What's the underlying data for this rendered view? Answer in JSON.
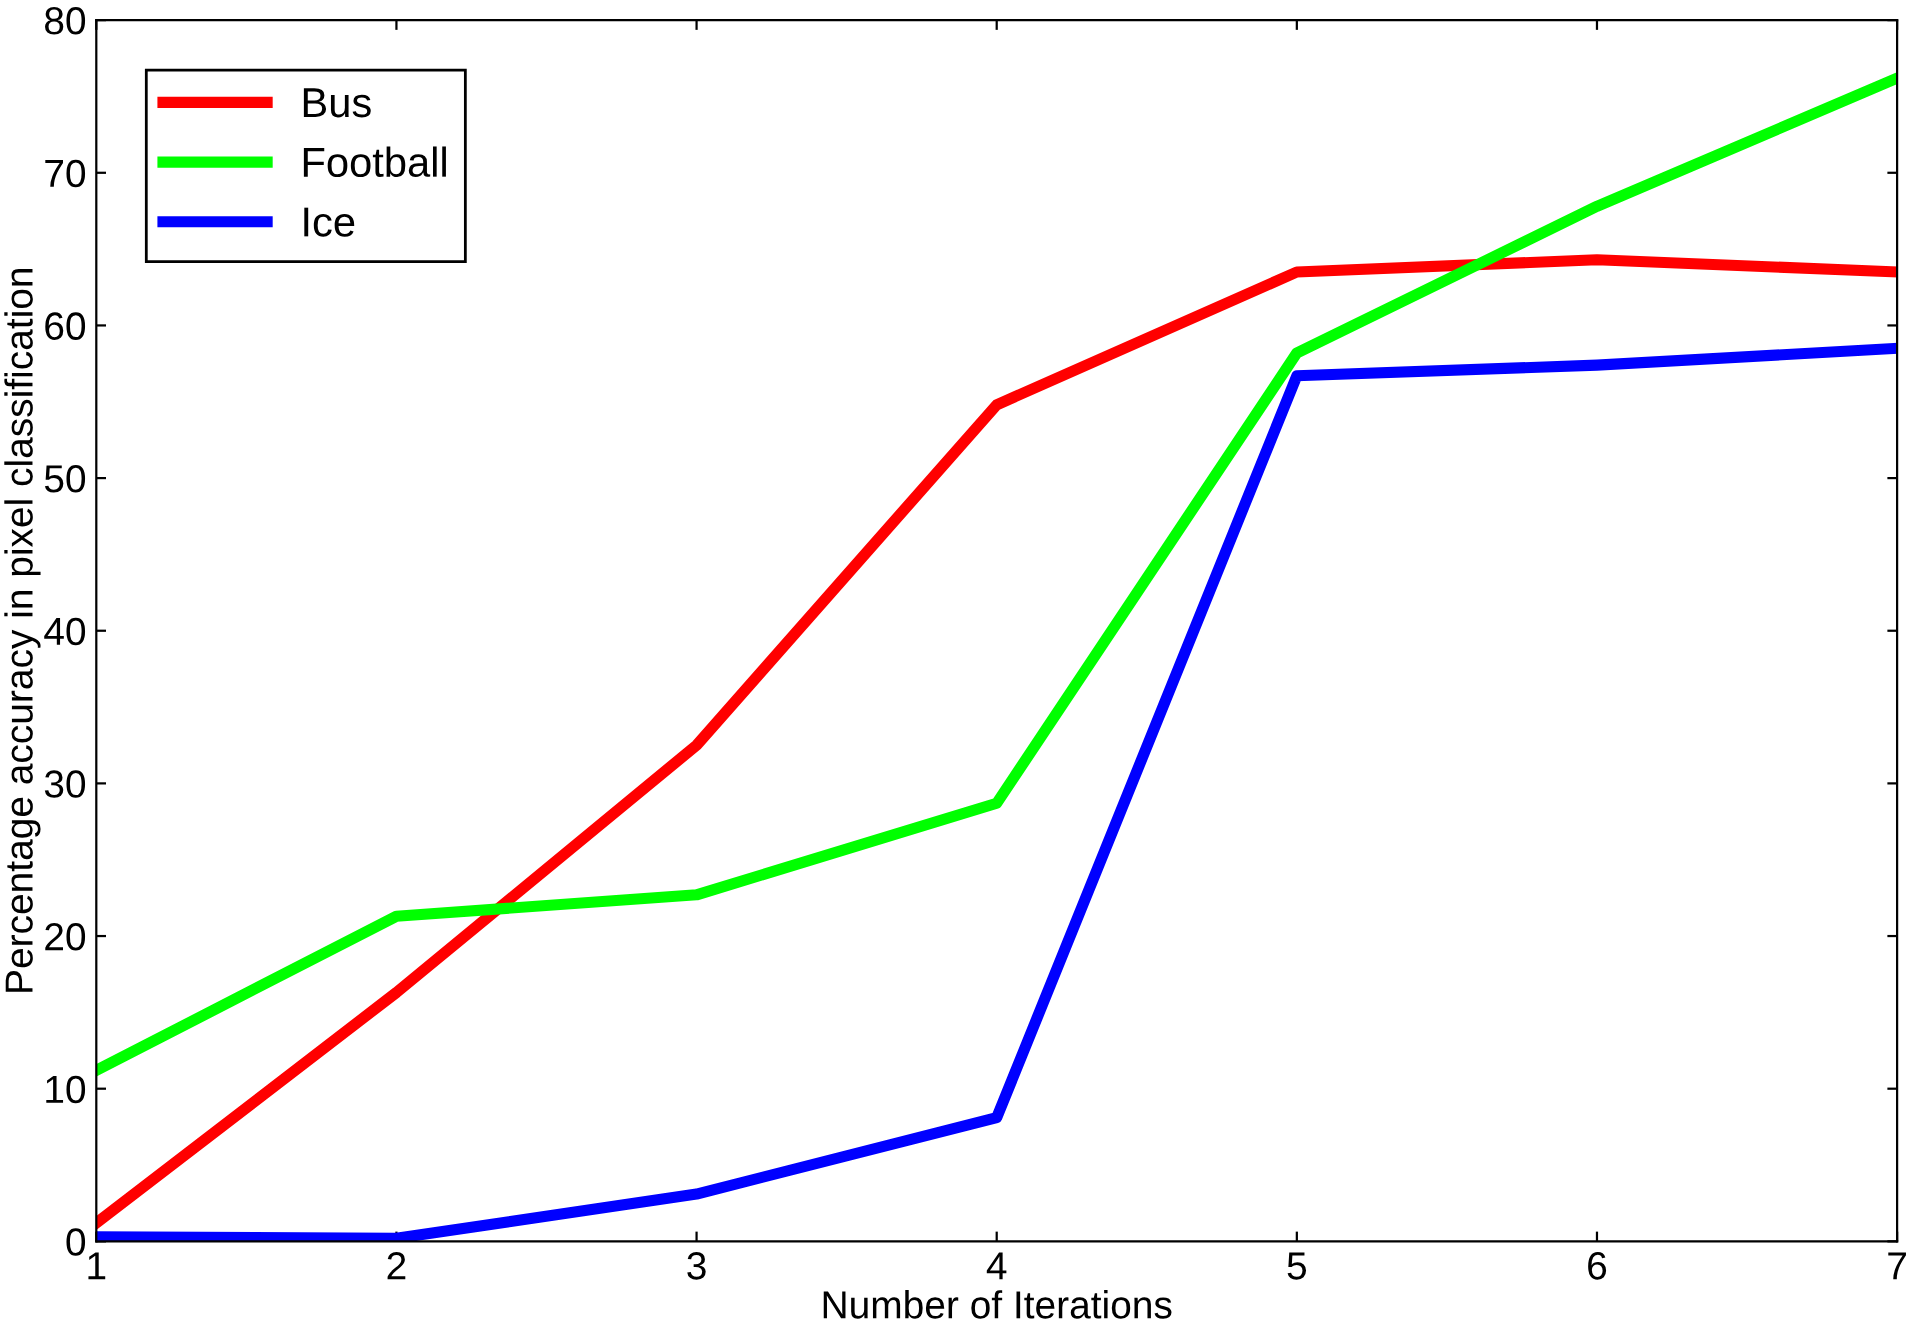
{
  "chart_data": {
    "type": "line",
    "xlabel": "Number of Iterations",
    "ylabel": "Percentage accuracy in pixel classification",
    "x": [
      1,
      2,
      3,
      4,
      5,
      6,
      7
    ],
    "series": [
      {
        "name": "Bus",
        "color": "#ff0000",
        "values": [
          1.2,
          16.3,
          32.5,
          54.8,
          63.5,
          64.3,
          63.5
        ]
      },
      {
        "name": "Football",
        "color": "#00ff00",
        "values": [
          11.2,
          21.3,
          22.7,
          28.7,
          58.2,
          67.8,
          76.2
        ]
      },
      {
        "name": "Ice",
        "color": "#0000ff",
        "values": [
          0.3,
          0.2,
          3.1,
          8.1,
          56.7,
          57.4,
          58.5
        ]
      }
    ],
    "xlim": [
      1,
      7
    ],
    "ylim": [
      0,
      80
    ],
    "xticks": [
      1,
      2,
      3,
      4,
      5,
      6,
      7
    ],
    "yticks": [
      0,
      10,
      20,
      30,
      40,
      50,
      60,
      70,
      80
    ],
    "grid": false,
    "legend": "top left",
    "marker": "none",
    "line_style": "solid"
  }
}
